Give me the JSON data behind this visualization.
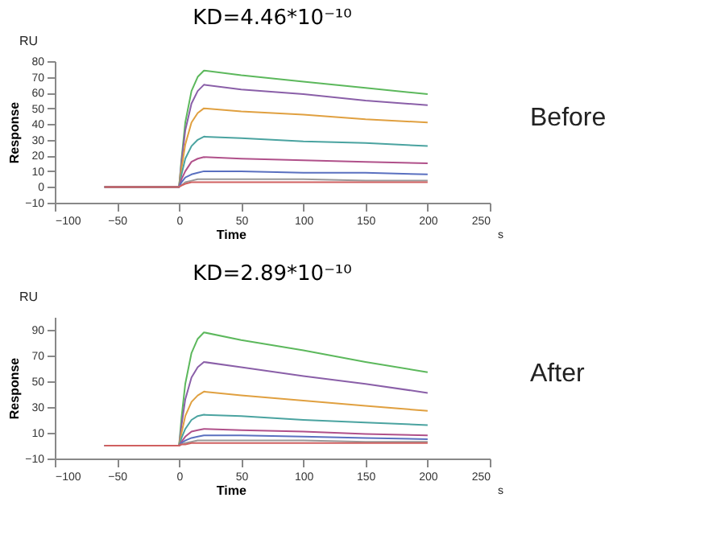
{
  "chart_data": [
    {
      "type": "line",
      "title": "KD=4.46*10⁻¹⁰",
      "xlabel": "Time",
      "ylabel": "Response",
      "annotations": [
        "RU",
        "s",
        "Before"
      ],
      "xlim": [
        -100,
        250
      ],
      "xticks": [
        -100,
        -50,
        0,
        50,
        100,
        150,
        200,
        250
      ],
      "ylim": [
        -10,
        80
      ],
      "yticks": [
        -10,
        0,
        10,
        20,
        30,
        40,
        50,
        60,
        70,
        80
      ],
      "grid": false,
      "legend": false,
      "marker": "none",
      "line_style": "solid",
      "x": [
        -60,
        0,
        2,
        5,
        10,
        15,
        20,
        50,
        100,
        150,
        200
      ],
      "series": [
        {
          "color": "#5cb85c",
          "values": [
            0,
            0,
            18,
            41,
            61,
            70,
            74,
            71,
            67,
            63,
            59
          ]
        },
        {
          "color": "#8a5fa8",
          "values": [
            0,
            0,
            16,
            36,
            53,
            61,
            65,
            62,
            59,
            55,
            52
          ]
        },
        {
          "color": "#e0a040",
          "values": [
            0,
            0,
            12,
            27,
            41,
            47,
            50,
            48,
            46,
            43,
            41
          ]
        },
        {
          "color": "#4aa3a0",
          "values": [
            0,
            0,
            8,
            18,
            26,
            30,
            32,
            31,
            29,
            28,
            26
          ]
        },
        {
          "color": "#b0508a",
          "values": [
            0,
            0,
            5,
            10,
            16,
            18,
            19,
            18,
            17,
            16,
            15
          ]
        },
        {
          "color": "#5a70c0",
          "values": [
            0,
            0,
            3,
            6,
            8,
            9,
            10,
            10,
            9,
            9,
            8
          ]
        },
        {
          "color": "#999999",
          "values": [
            0,
            0,
            1,
            3,
            4,
            5,
            5,
            5,
            5,
            4,
            4
          ]
        },
        {
          "color": "#d06060",
          "values": [
            0,
            0,
            1,
            2,
            3,
            3,
            3,
            3,
            3,
            3,
            3
          ]
        }
      ]
    },
    {
      "type": "line",
      "title": "KD=2.89*10⁻¹⁰",
      "xlabel": "Time",
      "ylabel": "Response",
      "annotations": [
        "RU",
        "s",
        "After"
      ],
      "xlim": [
        -100,
        250
      ],
      "xticks": [
        -100,
        -50,
        0,
        50,
        100,
        150,
        200,
        250
      ],
      "ylim": [
        -10,
        100
      ],
      "yticks": [
        -10,
        10,
        30,
        50,
        70,
        90
      ],
      "grid": false,
      "legend": false,
      "marker": "none",
      "line_style": "solid",
      "x": [
        -60,
        0,
        2,
        5,
        10,
        15,
        20,
        50,
        100,
        150,
        200
      ],
      "series": [
        {
          "color": "#5cb85c",
          "values": [
            0,
            0,
            22,
            48,
            72,
            83,
            88,
            82,
            74,
            65,
            57
          ]
        },
        {
          "color": "#8a5fa8",
          "values": [
            0,
            0,
            16,
            36,
            53,
            61,
            65,
            61,
            54,
            48,
            41
          ]
        },
        {
          "color": "#e0a040",
          "values": [
            0,
            0,
            10,
            23,
            34,
            39,
            42,
            39,
            35,
            31,
            27
          ]
        },
        {
          "color": "#4aa3a0",
          "values": [
            0,
            0,
            6,
            13,
            20,
            23,
            24,
            23,
            20,
            18,
            16
          ]
        },
        {
          "color": "#b0508a",
          "values": [
            0,
            0,
            3,
            7,
            11,
            12,
            13,
            12,
            11,
            9,
            8
          ]
        },
        {
          "color": "#5a70c0",
          "values": [
            0,
            0,
            2,
            4,
            6,
            7,
            8,
            8,
            7,
            6,
            5
          ]
        },
        {
          "color": "#999999",
          "values": [
            0,
            0,
            1,
            2,
            3,
            4,
            4,
            4,
            4,
            3,
            3
          ]
        },
        {
          "color": "#d06060",
          "values": [
            0,
            0,
            1,
            1,
            2,
            2,
            2,
            2,
            2,
            2,
            2
          ]
        }
      ]
    }
  ]
}
